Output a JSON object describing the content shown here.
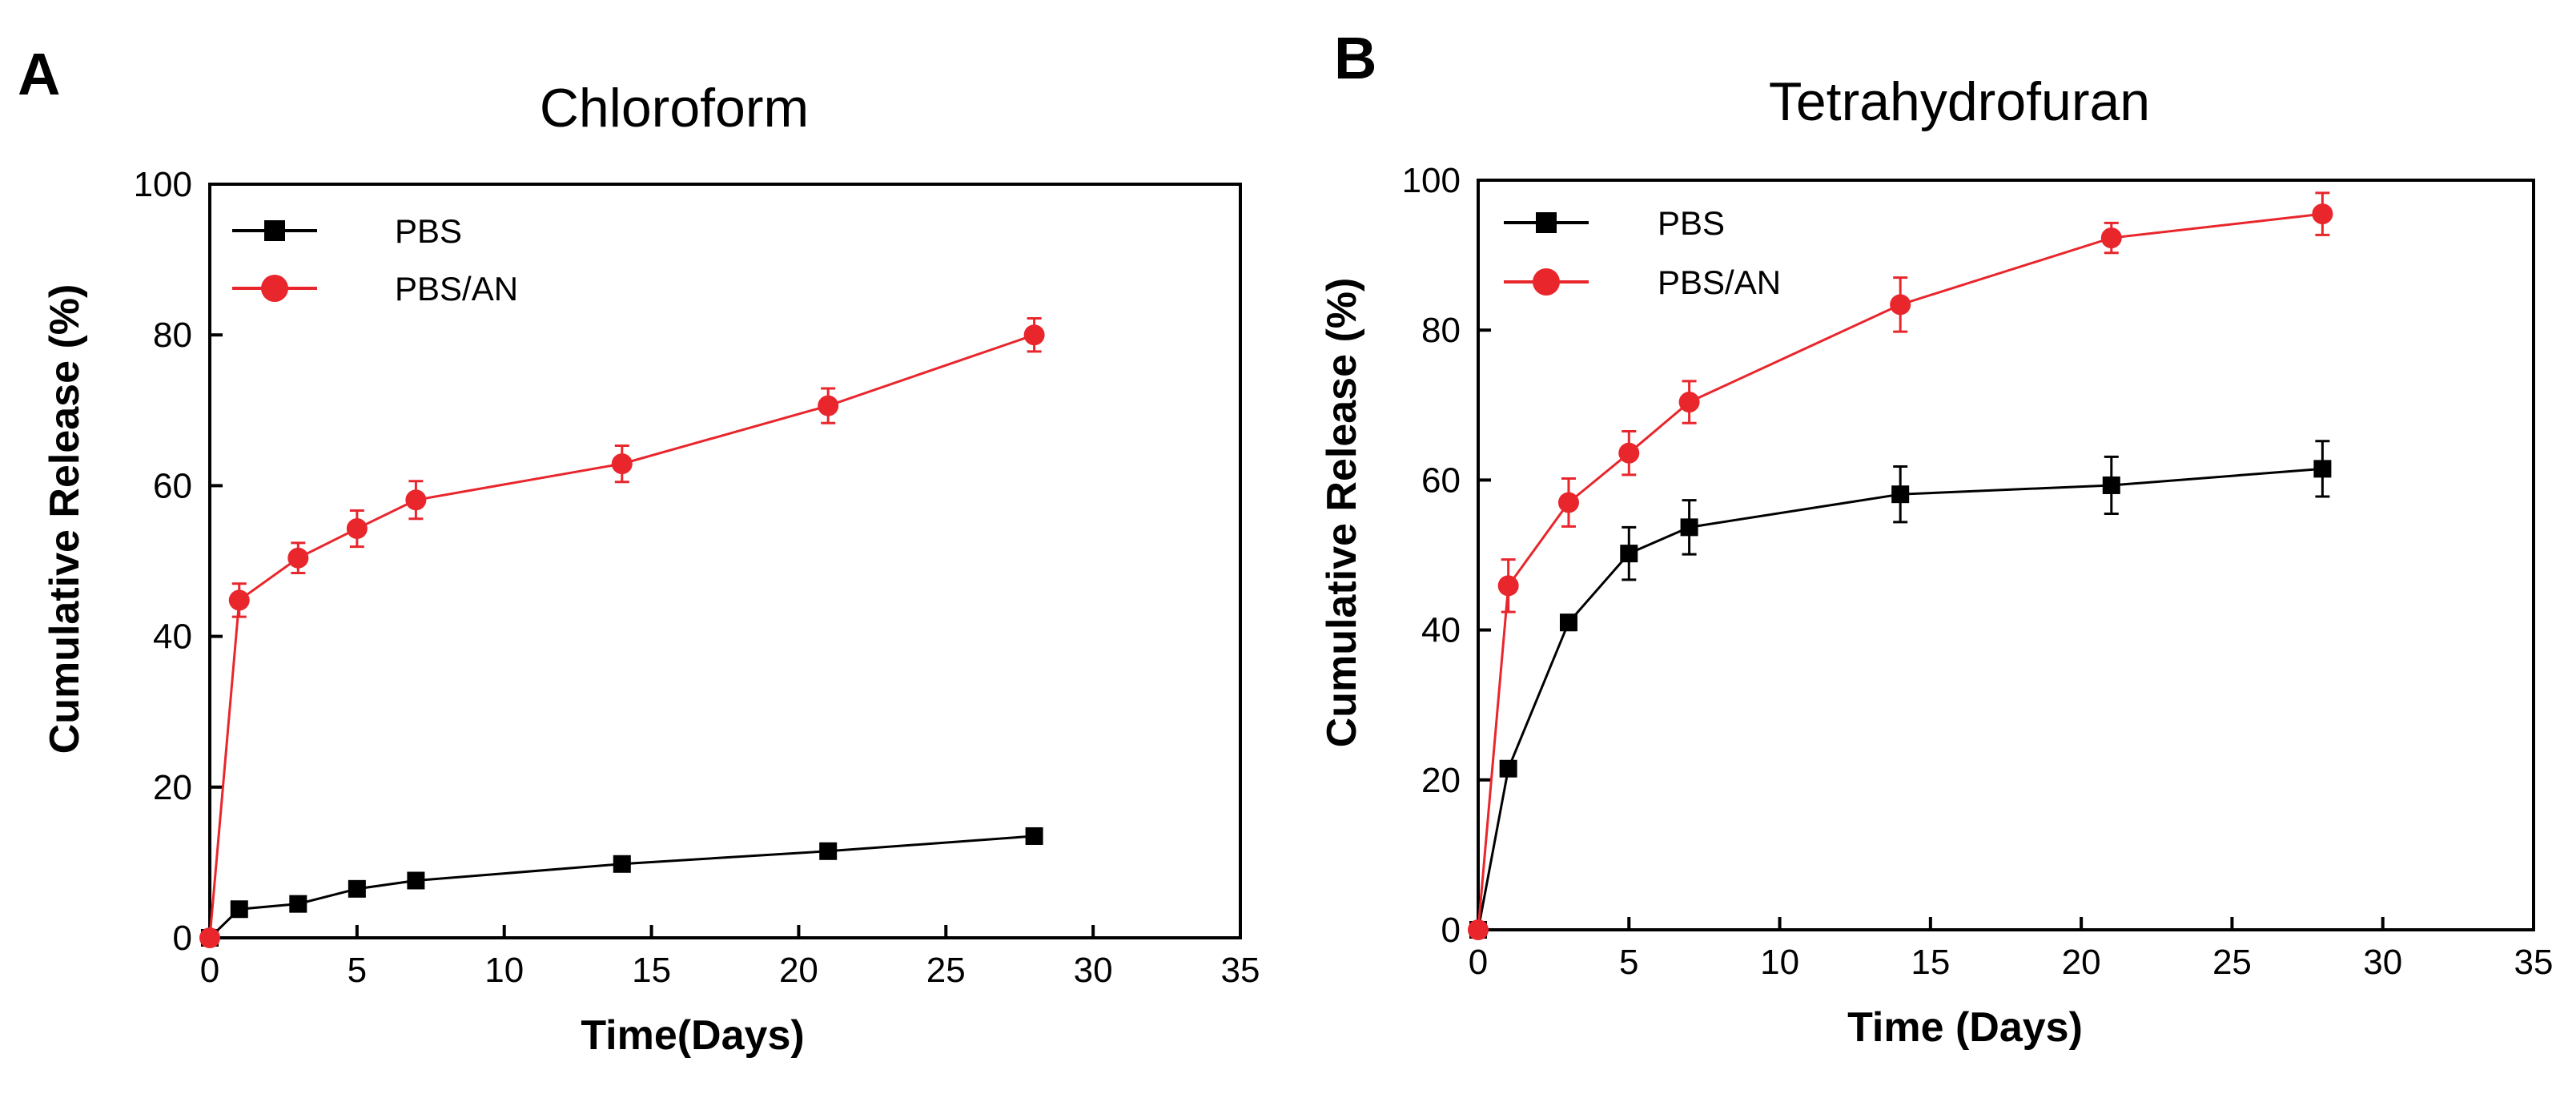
{
  "chart_data": [
    {
      "panel": "A",
      "type": "line",
      "title": "Chloroform",
      "xlabel": "Time(Days)",
      "ylabel": "Cumulative Release (%)",
      "xlim": [
        0,
        35
      ],
      "ylim": [
        0,
        100
      ],
      "xticks": [
        0,
        5,
        10,
        15,
        20,
        25,
        30,
        35
      ],
      "yticks": [
        0,
        20,
        40,
        60,
        80,
        100
      ],
      "legend_position": "top-left",
      "series": [
        {
          "name": "PBS",
          "color": "#000000",
          "marker": "square",
          "x": [
            0,
            1,
            3,
            5,
            7,
            14,
            21,
            28
          ],
          "y": [
            0,
            3.8,
            4.5,
            6.5,
            7.6,
            9.8,
            11.5,
            13.5
          ],
          "err": [
            0,
            0.4,
            0.4,
            0.5,
            0.5,
            0.5,
            0.6,
            0.6
          ]
        },
        {
          "name": "PBS/AN",
          "color": "#e8262c",
          "marker": "circle",
          "x": [
            0,
            1,
            3,
            5,
            7,
            14,
            21,
            28
          ],
          "y": [
            0,
            44.8,
            50.4,
            54.3,
            58.1,
            62.9,
            70.6,
            80.0
          ],
          "err": [
            0,
            2.2,
            2.0,
            2.4,
            2.5,
            2.4,
            2.3,
            2.2
          ]
        }
      ]
    },
    {
      "panel": "B",
      "type": "line",
      "title": "Tetrahydrofuran",
      "xlabel": "Time (Days)",
      "ylabel": "Cumulative Release (%)",
      "xlim": [
        0,
        35
      ],
      "ylim": [
        0,
        100
      ],
      "xticks": [
        0,
        5,
        10,
        15,
        20,
        25,
        30,
        35
      ],
      "yticks": [
        0,
        20,
        40,
        60,
        80,
        100
      ],
      "legend_position": "top-left",
      "series": [
        {
          "name": "PBS",
          "color": "#000000",
          "marker": "square",
          "x": [
            0,
            1,
            3,
            5,
            7,
            14,
            21,
            28
          ],
          "y": [
            0,
            21.5,
            41.0,
            50.2,
            53.7,
            58.1,
            59.3,
            61.5
          ],
          "err": [
            0,
            0.8,
            1.0,
            3.5,
            3.6,
            3.7,
            3.8,
            3.7
          ]
        },
        {
          "name": "PBS/AN",
          "color": "#e8262c",
          "marker": "circle",
          "x": [
            0,
            1,
            3,
            5,
            7,
            14,
            21,
            28
          ],
          "y": [
            0,
            45.9,
            57.0,
            63.6,
            70.4,
            83.4,
            92.3,
            95.5
          ],
          "err": [
            0,
            3.5,
            3.2,
            2.9,
            2.8,
            3.6,
            2.0,
            2.8
          ]
        }
      ]
    }
  ]
}
